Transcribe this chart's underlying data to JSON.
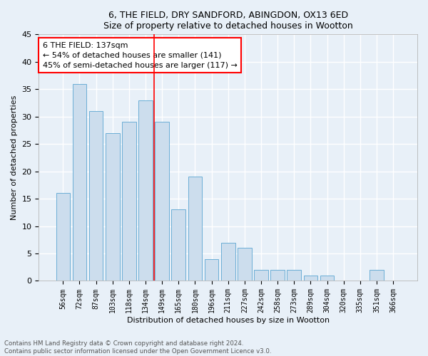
{
  "title1": "6, THE FIELD, DRY SANDFORD, ABINGDON, OX13 6ED",
  "title2": "Size of property relative to detached houses in Wootton",
  "xlabel": "Distribution of detached houses by size in Wootton",
  "ylabel": "Number of detached properties",
  "categories": [
    "56sqm",
    "72sqm",
    "87sqm",
    "103sqm",
    "118sqm",
    "134sqm",
    "149sqm",
    "165sqm",
    "180sqm",
    "196sqm",
    "211sqm",
    "227sqm",
    "242sqm",
    "258sqm",
    "273sqm",
    "289sqm",
    "304sqm",
    "320sqm",
    "335sqm",
    "351sqm",
    "366sqm"
  ],
  "values": [
    16,
    36,
    31,
    27,
    29,
    33,
    29,
    13,
    19,
    4,
    7,
    6,
    2,
    2,
    2,
    1,
    1,
    0,
    0,
    2,
    0
  ],
  "bar_color": "#ccdded",
  "bar_edge_color": "#6baed6",
  "vline_x_index": 5.5,
  "vline_color": "red",
  "annotation_text": "6 THE FIELD: 137sqm\n← 54% of detached houses are smaller (141)\n45% of semi-detached houses are larger (117) →",
  "annotation_box_color": "white",
  "annotation_box_edge": "red",
  "ylim": [
    0,
    45
  ],
  "yticks": [
    0,
    5,
    10,
    15,
    20,
    25,
    30,
    35,
    40,
    45
  ],
  "footer": "Contains HM Land Registry data © Crown copyright and database right 2024.\nContains public sector information licensed under the Open Government Licence v3.0.",
  "bg_color": "#e8f0f8",
  "grid_color": "white",
  "title_fontsize": 9,
  "axis_label_fontsize": 8,
  "tick_fontsize": 7,
  "annotation_fontsize": 8
}
